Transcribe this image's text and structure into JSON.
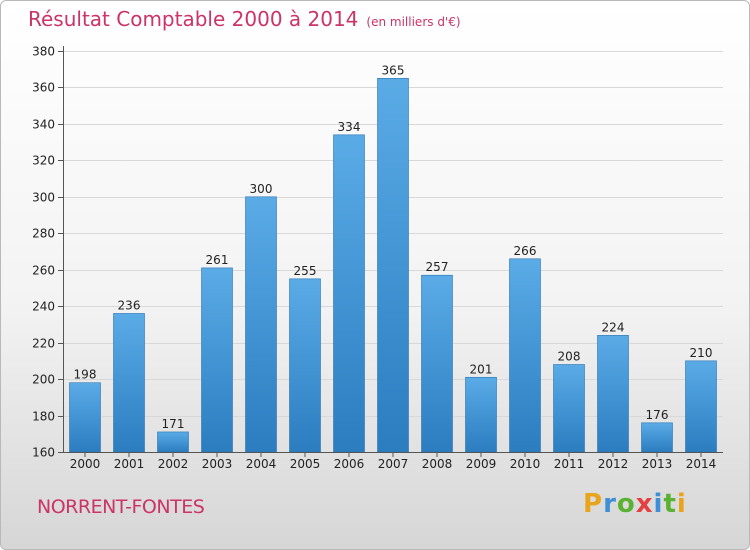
{
  "header": {
    "title": "Résultat Comptable 2000 à 2014",
    "subtitle": "(en milliers d'€)"
  },
  "footer": {
    "town": "NORRENT-FONTES",
    "logo_letters": [
      "P",
      "r",
      "o",
      "x",
      "i",
      "t",
      "i"
    ],
    "logo_colors": [
      "#e8a41b",
      "#3f8fd6",
      "#5bb232",
      "#e54040",
      "#3f8fd6",
      "#5bb232",
      "#e8a41b"
    ]
  },
  "chart_data": {
    "type": "bar",
    "title": "Résultat Comptable 2000 à 2014",
    "subtitle": "(en milliers d'€)",
    "categories": [
      "2000",
      "2001",
      "2002",
      "2003",
      "2004",
      "2005",
      "2006",
      "2007",
      "2008",
      "2009",
      "2010",
      "2011",
      "2012",
      "2013",
      "2014"
    ],
    "values": [
      198,
      236,
      171,
      261,
      300,
      255,
      334,
      365,
      257,
      201,
      266,
      208,
      224,
      176,
      210
    ],
    "ylim": [
      160,
      380
    ],
    "yticks": [
      160,
      180,
      200,
      220,
      240,
      260,
      280,
      300,
      320,
      340,
      360,
      380
    ],
    "grid": true,
    "bar_color_light": "#5aabe6",
    "bar_color_dark": "#2b7dc0"
  }
}
